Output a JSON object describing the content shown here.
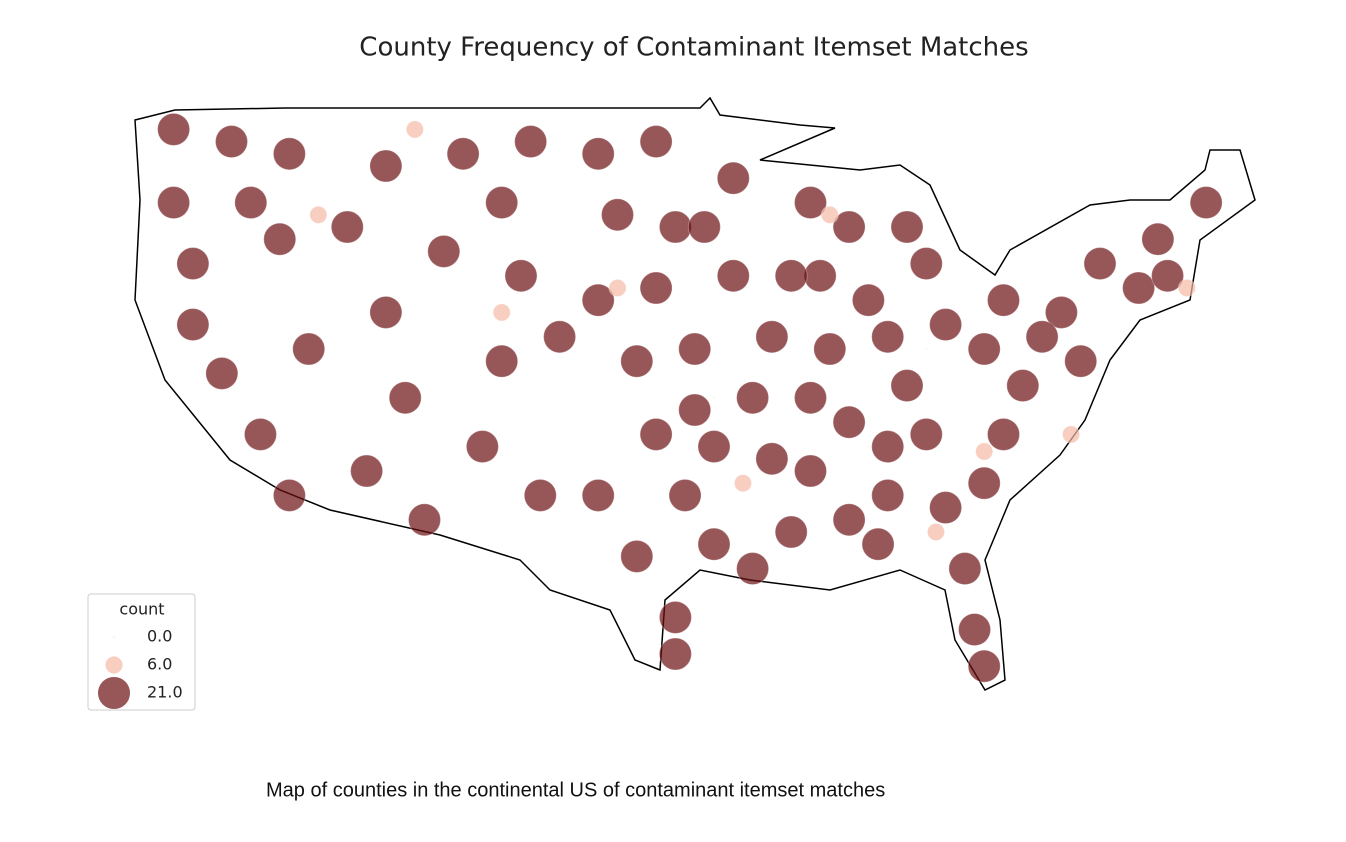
{
  "chart_data": {
    "type": "bubble-map",
    "title": "County Frequency of Contaminant Itemset Matches",
    "legend_title": "count",
    "legend_corner": "lower left",
    "size_legend": [
      {
        "value": 0,
        "label": "0.0",
        "color": "#fde6dc"
      },
      {
        "value": 6,
        "label": "6.0",
        "color": "#f4b9a4"
      },
      {
        "value": 21,
        "label": "21.0",
        "color": "#6b0f12"
      }
    ],
    "points": [
      [
        -123,
        48,
        21
      ],
      [
        -120,
        47.5,
        21
      ],
      [
        -117,
        47,
        21
      ],
      [
        -123,
        45,
        21
      ],
      [
        -119,
        45,
        21
      ],
      [
        -122,
        42.5,
        21
      ],
      [
        -117.5,
        43.5,
        21
      ],
      [
        -114,
        44,
        21
      ],
      [
        -112,
        46.5,
        21
      ],
      [
        -108,
        47,
        21
      ],
      [
        -104.5,
        47.5,
        21
      ],
      [
        -106,
        45,
        21
      ],
      [
        -109,
        43,
        21
      ],
      [
        -105,
        42,
        21
      ],
      [
        -101,
        47,
        21
      ],
      [
        -98,
        47.5,
        21
      ],
      [
        -100,
        44.5,
        21
      ],
      [
        -97,
        44,
        21
      ],
      [
        -122,
        40,
        21
      ],
      [
        -120.5,
        38,
        21
      ],
      [
        -118.5,
        35.5,
        21
      ],
      [
        -117,
        33,
        21
      ],
      [
        -116,
        39,
        21
      ],
      [
        -112,
        40.5,
        21
      ],
      [
        -111,
        37,
        21
      ],
      [
        -113,
        34,
        21
      ],
      [
        -110,
        32,
        21
      ],
      [
        -107,
        35,
        21
      ],
      [
        -104,
        33,
        21
      ],
      [
        -106,
        38.5,
        21
      ],
      [
        -103,
        39.5,
        21
      ],
      [
        -101,
        41,
        21
      ],
      [
        -98,
        41.5,
        21
      ],
      [
        -99,
        38.5,
        21
      ],
      [
        -96,
        39,
        21
      ],
      [
        -98,
        35.5,
        21
      ],
      [
        -101,
        33,
        21
      ],
      [
        -99,
        30.5,
        21
      ],
      [
        -97,
        28,
        21
      ],
      [
        -95,
        31,
        21
      ],
      [
        -95,
        35,
        21
      ],
      [
        -93,
        37,
        21
      ],
      [
        -92,
        39.5,
        21
      ],
      [
        -94,
        42,
        21
      ],
      [
        -94,
        46,
        21
      ],
      [
        -90,
        45,
        21
      ],
      [
        -89.5,
        42,
        21
      ],
      [
        -85,
        44,
        21
      ],
      [
        -84,
        42.5,
        21
      ],
      [
        -89,
        39,
        21
      ],
      [
        -86,
        39.5,
        21
      ],
      [
        -83,
        40,
        21
      ],
      [
        -85,
        37.5,
        21
      ],
      [
        -88,
        36,
        21
      ],
      [
        -92,
        34.5,
        21
      ],
      [
        -91,
        31.5,
        21
      ],
      [
        -88,
        32,
        21
      ],
      [
        -86,
        33,
        21
      ],
      [
        -83,
        32.5,
        21
      ],
      [
        -84,
        35.5,
        21
      ],
      [
        -80,
        35.5,
        21
      ],
      [
        -79,
        37.5,
        21
      ],
      [
        -81,
        39,
        21
      ],
      [
        -77,
        40.5,
        21
      ],
      [
        -80,
        41,
        21
      ],
      [
        -75,
        42.5,
        21
      ],
      [
        -76,
        38.5,
        21
      ],
      [
        -73,
        41.5,
        21
      ],
      [
        -72,
        43.5,
        21
      ],
      [
        -69.5,
        45,
        21
      ],
      [
        -71.5,
        42,
        21
      ],
      [
        -81,
        33.5,
        21
      ],
      [
        -82,
        30,
        21
      ],
      [
        -81.5,
        27.5,
        21
      ],
      [
        -81,
        26,
        21
      ],
      [
        -93,
        30,
        21
      ],
      [
        -97,
        26.5,
        21
      ],
      [
        -88,
        44,
        21
      ],
      [
        -90,
        37,
        21
      ],
      [
        -96.5,
        33,
        21
      ],
      [
        -87,
        41,
        21
      ],
      [
        -91,
        42,
        21
      ],
      [
        -95.5,
        44,
        21
      ],
      [
        -78,
        39.5,
        21
      ],
      [
        -86,
        35,
        21
      ],
      [
        -90,
        34,
        21
      ],
      [
        -96,
        36.5,
        21
      ],
      [
        -86.5,
        31,
        21
      ],
      [
        -110.5,
        48,
        6
      ],
      [
        -115.5,
        44.5,
        6
      ],
      [
        -106,
        40.5,
        6
      ],
      [
        -100,
        41.5,
        6
      ],
      [
        -93.5,
        33.5,
        6
      ],
      [
        -83.5,
        31.5,
        6
      ],
      [
        -76.5,
        35.5,
        6
      ],
      [
        -70.5,
        41.5,
        6
      ],
      [
        -89,
        44.5,
        6
      ],
      [
        -81,
        34.8,
        6
      ],
      [
        -95,
        37,
        0
      ],
      [
        -87,
        35,
        0
      ],
      [
        -84,
        39,
        0
      ]
    ],
    "caption": "Map of counties in the continental US of contaminant itemset matches"
  }
}
